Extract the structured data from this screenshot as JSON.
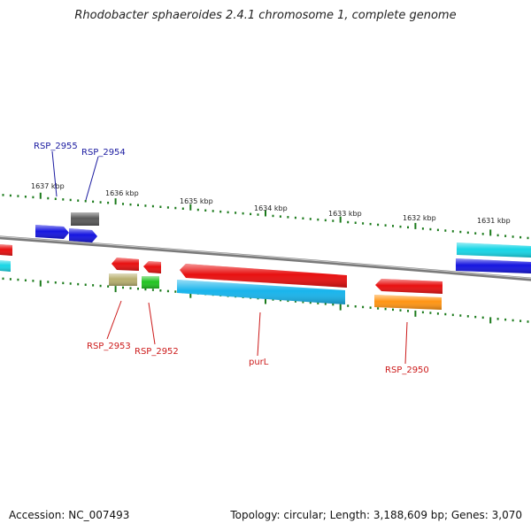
{
  "title": "Rhodobacter sphaeroides 2.4.1 chromosome 1, complete genome",
  "accession": "Accession: NC_007493",
  "stats": "Topology: circular; Length: 3,188,609 bp; Genes: 3,070",
  "colors": {
    "backbone": "#8a8a8a",
    "tick": "#1a7a1a",
    "label_forward": "#1a1aa0",
    "label_reverse": "#cc1a1a"
  },
  "scale_labels": [
    "1637 kbp",
    "1636 kbp",
    "1635 kbp",
    "1634 kbp",
    "1633 kbp",
    "1632 kbp",
    "1631 kbp"
  ],
  "genes": [
    {
      "id": "RSP_2955",
      "label": "RSP_2955",
      "strand": "forward",
      "color": "#1515e0"
    },
    {
      "id": "RSP_2954",
      "label": "RSP_2954",
      "strand": "forward",
      "color": "#1515e0"
    },
    {
      "id": "unlabeled-forward-gray",
      "label": "",
      "strand": "forward",
      "color": "#5a5a5a"
    },
    {
      "id": "unlabeled-forward-cyan",
      "label": "",
      "strand": "forward",
      "color": "#18d6e6"
    },
    {
      "id": "unlabeled-forward-blue",
      "label": "",
      "strand": "forward",
      "color": "#1515e0"
    },
    {
      "id": "unlabeled-reverse-red-left",
      "label": "",
      "strand": "reverse",
      "color": "#e81010"
    },
    {
      "id": "unlabeled-reverse-cyan-left",
      "label": "",
      "strand": "reverse",
      "color": "#18d6e6"
    },
    {
      "id": "RSP_2953",
      "label": "RSP_2953",
      "strand": "reverse",
      "color": "#e81010"
    },
    {
      "id": "RSP_2953-khaki",
      "label": "",
      "strand": "reverse",
      "color": "#b8b070"
    },
    {
      "id": "RSP_2952",
      "label": "RSP_2952",
      "strand": "reverse",
      "color": "#e81010"
    },
    {
      "id": "RSP_2952-green",
      "label": "",
      "strand": "reverse",
      "color": "#22c422"
    },
    {
      "id": "purL",
      "label": "purL",
      "strand": "reverse",
      "color": "#e81010"
    },
    {
      "id": "purL-cyan",
      "label": "",
      "strand": "reverse",
      "color": "#18b4ec"
    },
    {
      "id": "RSP_2950",
      "label": "RSP_2950",
      "strand": "reverse",
      "color": "#e81010"
    },
    {
      "id": "RSP_2950-orange",
      "label": "",
      "strand": "reverse",
      "color": "#ff9514"
    }
  ]
}
